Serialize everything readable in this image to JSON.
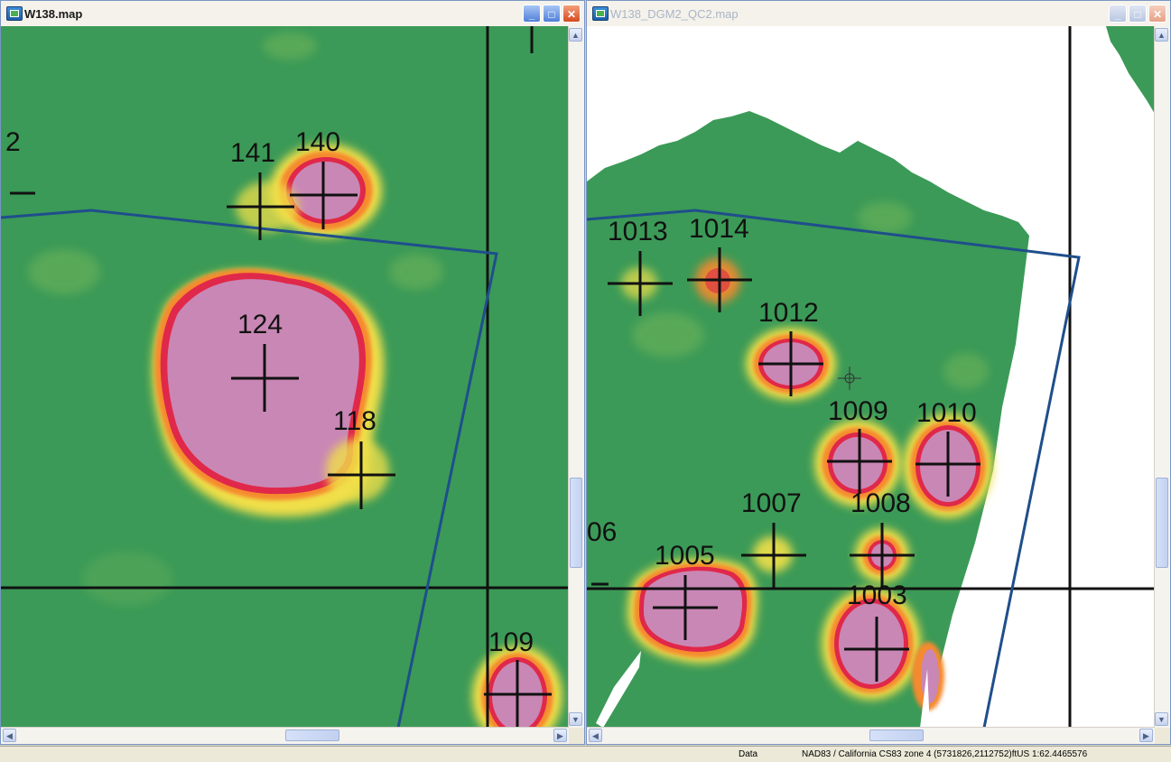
{
  "left_window": {
    "title": "W138.map",
    "buttons": {
      "minimize": "_",
      "maximize": "□",
      "close": "✕"
    },
    "labels": {
      "l2": "2",
      "l141": "141",
      "l140": "140",
      "l124": "124",
      "l118": "118",
      "l109": "109"
    }
  },
  "right_window": {
    "title": "W138_DGM2_QC2.map",
    "buttons": {
      "minimize": "_",
      "maximize": "□",
      "close": "✕"
    },
    "labels": {
      "l1013": "1013",
      "l1014": "1014",
      "l1012": "1012",
      "l1009": "1009",
      "l1010": "1010",
      "l1007": "1007",
      "l1008": "1008",
      "l06": "06",
      "l1005": "1005",
      "l1003": "1003"
    }
  },
  "scroll": {
    "up": "▲",
    "down": "▼",
    "left": "◀",
    "right": "▶"
  },
  "status_bar": {
    "mode": "Data",
    "coordinates": "NAD83 / California CS83 zone 4  (5731826,2112752)ftUS  1:62.4465576"
  },
  "colors": {
    "background": "#3b9a57",
    "anomaly": "#c987b5",
    "ring_red": "#e0284a",
    "ring_orange": "#f58a2e",
    "ring_yellow": "#f0df4a",
    "boundary": "#1f4e8c",
    "grid": "#111111"
  }
}
